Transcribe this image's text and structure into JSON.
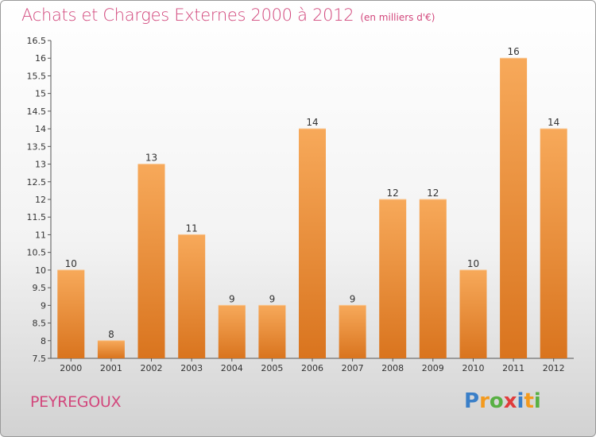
{
  "header": {
    "title": "Achats et Charges Externes 2000 à 2012",
    "subtitle": "(en milliers d'€)"
  },
  "footer": {
    "commune": "PEYREGOUX",
    "logo": {
      "text": "Proxiti",
      "letters": [
        "P",
        "r",
        "o",
        "x",
        "i",
        "t",
        "i"
      ],
      "colors": [
        "#3a7fc8",
        "#f39a1e",
        "#58b043",
        "#e03c3c",
        "#3a7fc8",
        "#f39a1e",
        "#58b043"
      ]
    }
  },
  "colors": {
    "bar_light": "#f7a95a",
    "bar_dark": "#d9741e",
    "title": "#d2477c"
  },
  "chart_data": {
    "type": "bar",
    "title": "Achats et Charges Externes 2000 à 2012",
    "subtitle": "(en milliers d'€)",
    "categories": [
      "2000",
      "2001",
      "2002",
      "2003",
      "2004",
      "2005",
      "2006",
      "2007",
      "2008",
      "2009",
      "2010",
      "2011",
      "2012"
    ],
    "values": [
      10,
      8,
      13,
      11,
      9,
      9,
      14,
      9,
      12,
      12,
      10,
      16,
      14
    ],
    "value_labels": [
      "10",
      "8",
      "13",
      "11",
      "9",
      "9",
      "14",
      "9",
      "12",
      "12",
      "10",
      "16",
      "14"
    ],
    "ylim": [
      7.5,
      16.5
    ],
    "yticks": [
      7.5,
      8,
      8.5,
      9,
      9.5,
      10,
      10.5,
      11,
      11.5,
      12,
      12.5,
      13,
      13.5,
      14,
      14.5,
      15,
      15.5,
      16,
      16.5
    ],
    "ytick_labels": [
      "7.5",
      "8",
      "8.5",
      "9",
      "9.5",
      "10",
      "10.5",
      "11",
      "11.5",
      "12",
      "12.5",
      "13",
      "13.5",
      "14",
      "14.5",
      "15",
      "15.5",
      "16",
      "16.5"
    ],
    "grid": false
  }
}
